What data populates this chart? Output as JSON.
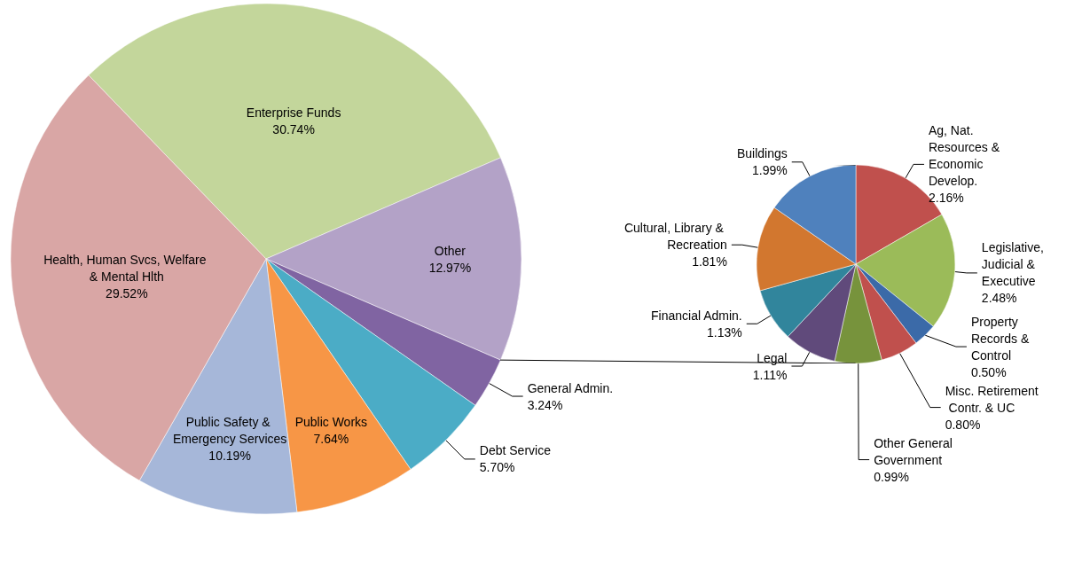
{
  "chart_data": [
    {
      "type": "pie",
      "categories": [
        "Enterprise Funds",
        "Other",
        "General Admin.",
        "Debt Service",
        "Public Works",
        "Public Safety & Emergency Services",
        "Health, Human Svcs, Welfare & Mental Hlth"
      ],
      "values": [
        30.74,
        12.97,
        3.24,
        5.7,
        7.64,
        10.19,
        29.52
      ],
      "value_labels": [
        "30.74%",
        "12.97%",
        "3.24%",
        "5.70%",
        "7.64%",
        "10.19%",
        "29.52%"
      ],
      "colors": [
        "#c3d69b",
        "#b3a2c7",
        "#8064a2",
        "#4bacc6",
        "#f79646",
        "#a6b7d9",
        "#d9a6a5"
      ]
    },
    {
      "type": "pie",
      "categories": [
        "Ag, Nat. Resources & Economic Develop.",
        "Legislative, Judicial & Executive",
        "Property Records & Control",
        "Misc. Retirement Contr. & UC",
        "Other General Government",
        "Legal",
        "Financial Admin.",
        "Cultural, Library & Recreation",
        "Buildings"
      ],
      "values": [
        2.16,
        2.48,
        0.5,
        0.8,
        0.99,
        1.11,
        1.13,
        1.81,
        1.99
      ],
      "value_labels": [
        "2.16%",
        "2.48%",
        "0.50%",
        "0.80%",
        "0.99%",
        "1.11%",
        "1.13%",
        "1.81%",
        "1.99%"
      ],
      "colors": [
        "#c0504d",
        "#9bbb59",
        "#3b6aa8",
        "#c0504d",
        "#77933c",
        "#604a7b",
        "#31859c",
        "#d2772f",
        "#4f81bd"
      ]
    }
  ]
}
